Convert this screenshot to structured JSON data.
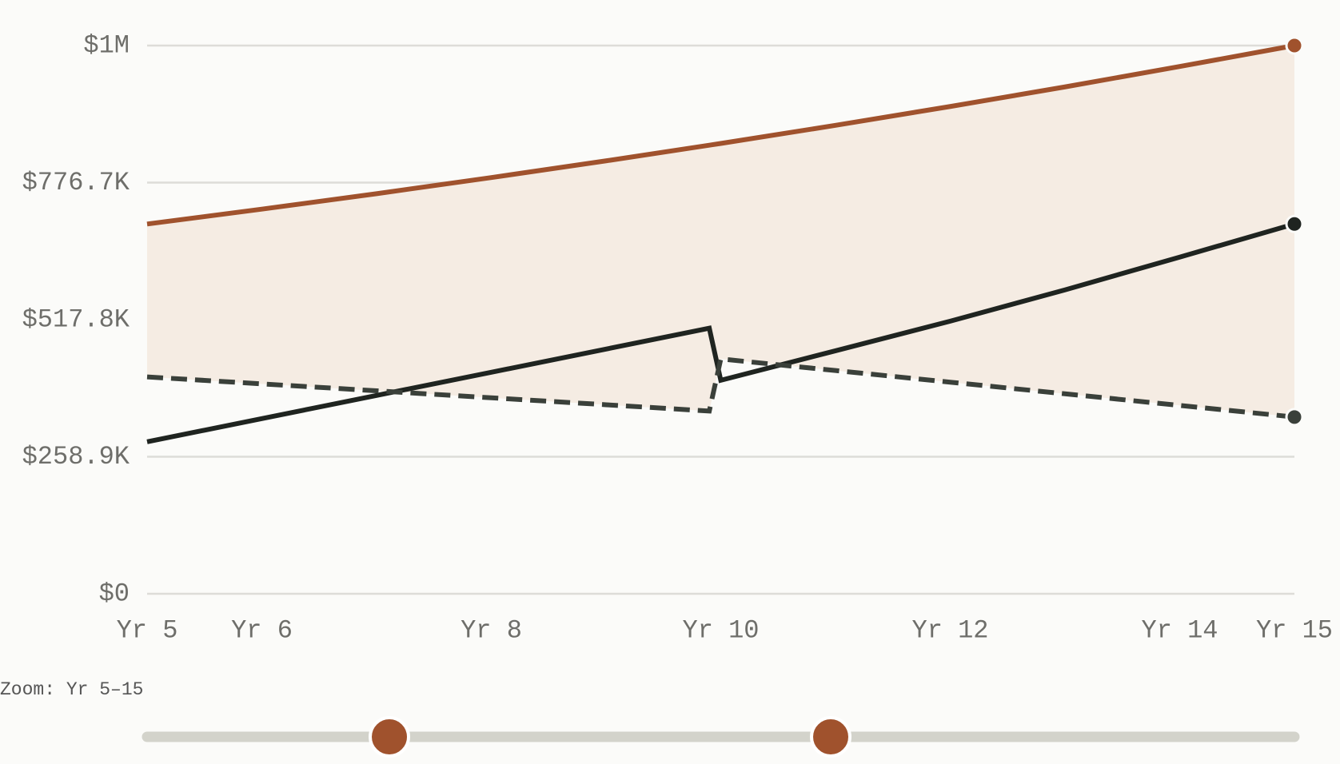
{
  "chart_data": {
    "type": "line",
    "ylim": [
      0,
      1035600
    ],
    "yticks": [
      {
        "value": 0,
        "label": "$0"
      },
      {
        "value": 258900,
        "label": "$258.9K"
      },
      {
        "value": 517800,
        "label": "$517.8K"
      },
      {
        "value": 776700,
        "label": "$776.7K"
      },
      {
        "value": 1035600,
        "label": "$1M"
      }
    ],
    "xlim": [
      5,
      15
    ],
    "xticks": [
      {
        "value": 5,
        "label": "Yr 5"
      },
      {
        "value": 6,
        "label": "Yr 6"
      },
      {
        "value": 8,
        "label": "Yr 8"
      },
      {
        "value": 10,
        "label": "Yr 10"
      },
      {
        "value": 12,
        "label": "Yr 12"
      },
      {
        "value": 14,
        "label": "Yr 14"
      },
      {
        "value": 15,
        "label": "Yr 15"
      }
    ],
    "grid": true,
    "band": {
      "color": "#f5ece3"
    },
    "series": [
      {
        "color": "#a0522d",
        "dashed": false,
        "x": [
          5,
          6,
          7,
          8,
          9,
          10,
          11,
          12,
          13,
          14,
          15
        ],
        "values": [
          698500,
          726600,
          755800,
          786200,
          817800,
          850700,
          884900,
          920500,
          957500,
          996000,
          1035600
        ]
      },
      {
        "color": "#1f2420",
        "dashed": false,
        "x": [
          5,
          6,
          7,
          8,
          9,
          9.9,
          10,
          11,
          12,
          13,
          14,
          15
        ],
        "values": [
          287100,
          330900,
          374700,
          418500,
          462300,
          501700,
          403300,
          459000,
          515000,
          574000,
          636000,
          698500
        ]
      },
      {
        "color": "#3a403a",
        "dashed": true,
        "x": [
          5,
          6,
          7,
          8,
          9,
          9.9,
          10,
          11,
          12,
          13,
          14,
          15
        ],
        "values": [
          409700,
          396500,
          383400,
          370200,
          357100,
          345200,
          443600,
          421700,
          399700,
          377800,
          355800,
          333900
        ]
      }
    ]
  },
  "zoom_label": "Zoom: Yr 5–15"
}
